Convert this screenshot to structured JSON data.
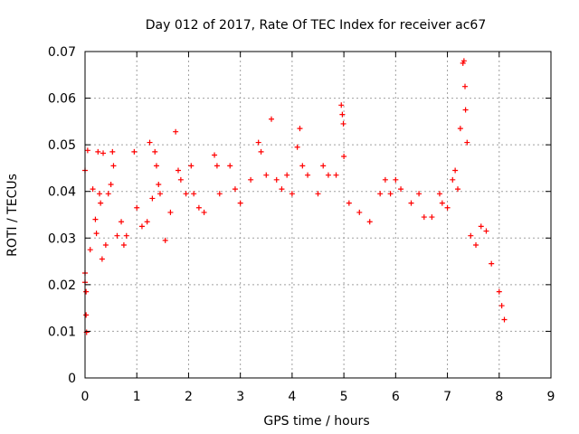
{
  "chart_data": {
    "type": "scatter",
    "title": "Day 012 of 2017, Rate Of TEC Index for receiver ac67",
    "xlabel": "GPS time / hours",
    "ylabel": "ROTI / TECUs",
    "xlim": [
      0,
      9
    ],
    "ylim": [
      0,
      0.07
    ],
    "xticks": [
      "0",
      "1",
      "2",
      "3",
      "4",
      "5",
      "6",
      "7",
      "8",
      "9"
    ],
    "yticks": [
      "0",
      "0.01",
      "0.02",
      "0.03",
      "0.04",
      "0.05",
      "0.06",
      "0.07"
    ],
    "grid": true,
    "marker": "plus",
    "color": "#ff0000",
    "series": [
      {
        "points": [
          [
            0.0,
            0.0445
          ],
          [
            0.0,
            0.0225
          ],
          [
            0.0,
            0.0205
          ],
          [
            0.02,
            0.0185
          ],
          [
            0.02,
            0.0135
          ],
          [
            0.03,
            0.0098
          ],
          [
            0.05,
            0.0488
          ],
          [
            0.1,
            0.0275
          ],
          [
            0.15,
            0.0405
          ],
          [
            0.2,
            0.034
          ],
          [
            0.22,
            0.031
          ],
          [
            0.25,
            0.0485
          ],
          [
            0.28,
            0.0395
          ],
          [
            0.3,
            0.0375
          ],
          [
            0.33,
            0.0255
          ],
          [
            0.35,
            0.0482
          ],
          [
            0.4,
            0.0285
          ],
          [
            0.45,
            0.0395
          ],
          [
            0.5,
            0.0415
          ],
          [
            0.53,
            0.0485
          ],
          [
            0.55,
            0.0455
          ],
          [
            0.62,
            0.0305
          ],
          [
            0.7,
            0.0335
          ],
          [
            0.75,
            0.0285
          ],
          [
            0.8,
            0.0305
          ],
          [
            0.95,
            0.0485
          ],
          [
            1.0,
            0.0365
          ],
          [
            1.1,
            0.0325
          ],
          [
            1.2,
            0.0335
          ],
          [
            1.25,
            0.0505
          ],
          [
            1.3,
            0.0385
          ],
          [
            1.35,
            0.0485
          ],
          [
            1.38,
            0.0455
          ],
          [
            1.42,
            0.0415
          ],
          [
            1.45,
            0.0395
          ],
          [
            1.55,
            0.0295
          ],
          [
            1.65,
            0.0355
          ],
          [
            1.75,
            0.0528
          ],
          [
            1.8,
            0.0445
          ],
          [
            1.85,
            0.0425
          ],
          [
            1.95,
            0.0395
          ],
          [
            2.05,
            0.0455
          ],
          [
            2.1,
            0.0395
          ],
          [
            2.2,
            0.0365
          ],
          [
            2.3,
            0.0355
          ],
          [
            2.5,
            0.0478
          ],
          [
            2.55,
            0.0455
          ],
          [
            2.6,
            0.0395
          ],
          [
            2.8,
            0.0455
          ],
          [
            2.9,
            0.0405
          ],
          [
            3.0,
            0.0375
          ],
          [
            3.2,
            0.0425
          ],
          [
            3.35,
            0.0505
          ],
          [
            3.4,
            0.0485
          ],
          [
            3.5,
            0.0435
          ],
          [
            3.6,
            0.0555
          ],
          [
            3.7,
            0.0425
          ],
          [
            3.8,
            0.0405
          ],
          [
            3.9,
            0.0435
          ],
          [
            4.0,
            0.0395
          ],
          [
            4.1,
            0.0495
          ],
          [
            4.15,
            0.0535
          ],
          [
            4.2,
            0.0455
          ],
          [
            4.3,
            0.0435
          ],
          [
            4.5,
            0.0395
          ],
          [
            4.6,
            0.0455
          ],
          [
            4.7,
            0.0435
          ],
          [
            4.85,
            0.0435
          ],
          [
            4.95,
            0.0585
          ],
          [
            4.97,
            0.0565
          ],
          [
            4.99,
            0.0545
          ],
          [
            5.0,
            0.0475
          ],
          [
            5.1,
            0.0375
          ],
          [
            5.3,
            0.0355
          ],
          [
            5.5,
            0.0335
          ],
          [
            5.7,
            0.0395
          ],
          [
            5.8,
            0.0425
          ],
          [
            5.9,
            0.0395
          ],
          [
            6.0,
            0.0425
          ],
          [
            6.1,
            0.0405
          ],
          [
            6.3,
            0.0375
          ],
          [
            6.45,
            0.0395
          ],
          [
            6.55,
            0.0345
          ],
          [
            6.7,
            0.0345
          ],
          [
            6.85,
            0.0395
          ],
          [
            6.9,
            0.0375
          ],
          [
            7.0,
            0.0365
          ],
          [
            7.1,
            0.0425
          ],
          [
            7.15,
            0.0445
          ],
          [
            7.2,
            0.0405
          ],
          [
            7.25,
            0.0535
          ],
          [
            7.3,
            0.0675
          ],
          [
            7.32,
            0.068
          ],
          [
            7.34,
            0.0625
          ],
          [
            7.35,
            0.0575
          ],
          [
            7.38,
            0.0505
          ],
          [
            7.45,
            0.0305
          ],
          [
            7.55,
            0.0285
          ],
          [
            7.65,
            0.0325
          ],
          [
            7.75,
            0.0315
          ],
          [
            7.85,
            0.0245
          ],
          [
            8.0,
            0.0185
          ],
          [
            8.05,
            0.0155
          ],
          [
            8.1,
            0.0125
          ]
        ]
      }
    ]
  }
}
